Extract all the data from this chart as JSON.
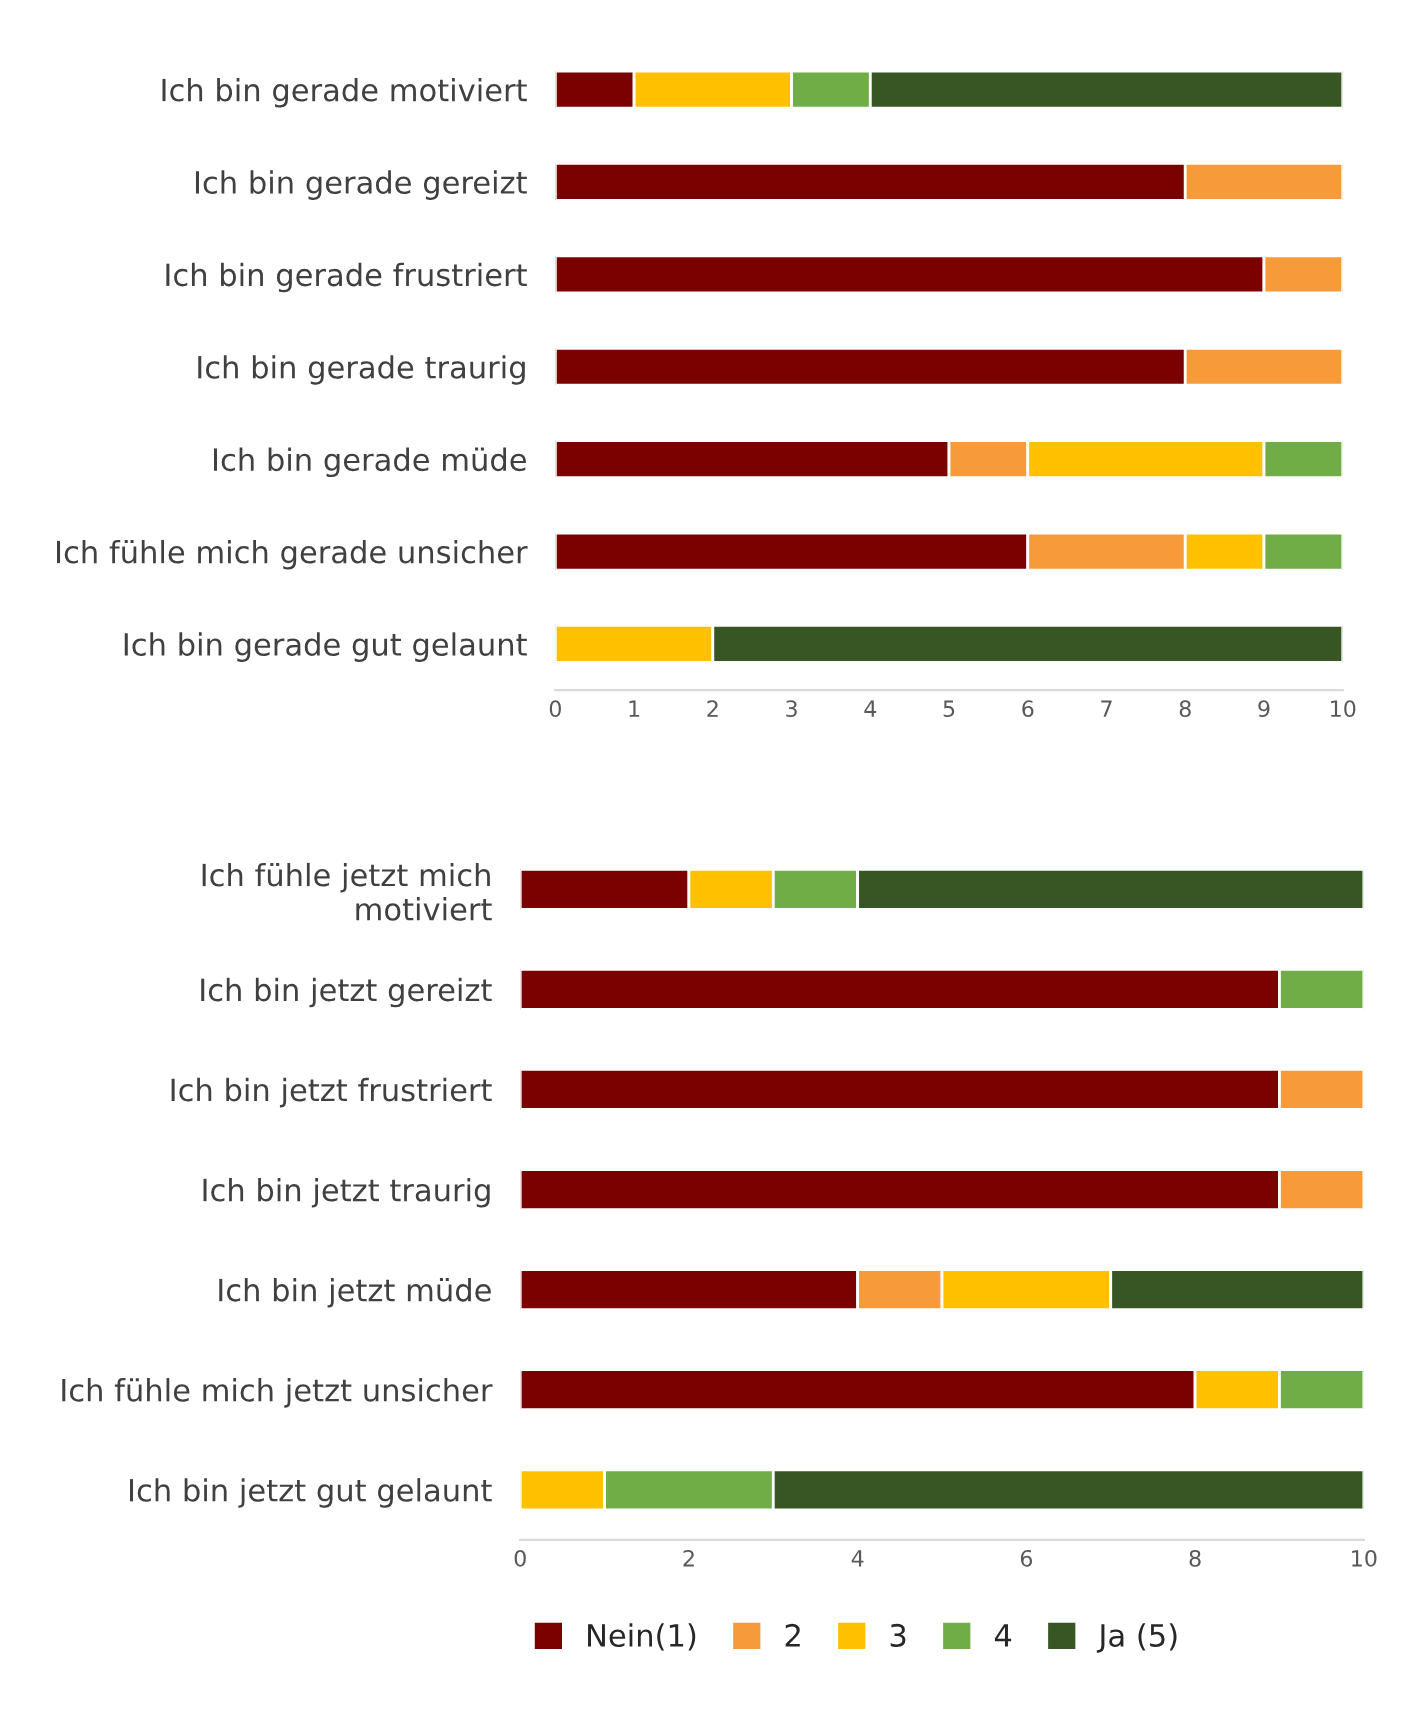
{
  "chart_data": [
    {
      "type": "bar",
      "orientation": "horizontal",
      "stacked": true,
      "categories": [
        "Ich bin gerade motiviert",
        "Ich bin gerade gereizt",
        "Ich bin gerade frustriert",
        "Ich bin gerade traurig",
        "Ich bin gerade müde",
        "Ich fühle mich gerade unsicher",
        "Ich bin gerade gut gelaunt"
      ],
      "series": [
        {
          "color": "#7b0000",
          "values": [
            1,
            8,
            9,
            8,
            5,
            6,
            null
          ]
        },
        {
          "color": "#f79a3a",
          "values": [
            null,
            2,
            1,
            2,
            1,
            2,
            null
          ]
        },
        {
          "color": "#ffc000",
          "values": [
            2,
            null,
            null,
            null,
            3,
            1,
            2
          ]
        },
        {
          "color": "#70ad47",
          "values": [
            1,
            null,
            null,
            null,
            1,
            1,
            null
          ]
        },
        {
          "color": "#375623",
          "values": [
            6,
            null,
            null,
            null,
            null,
            null,
            8
          ]
        }
      ],
      "xlim": [
        0,
        10
      ],
      "xticks": [
        0,
        1,
        2,
        3,
        4,
        5,
        6,
        7,
        8,
        9,
        10
      ],
      "grid": false
    },
    {
      "type": "bar",
      "orientation": "horizontal",
      "stacked": true,
      "categories": [
        "Ich fühle jetzt mich\nmotiviert",
        "Ich bin jetzt gereizt",
        "Ich bin jetzt frustriert",
        "Ich bin jetzt traurig",
        "Ich bin jetzt müde",
        "Ich fühle mich jetzt unsicher",
        "Ich bin jetzt gut gelaunt"
      ],
      "series": [
        {
          "name": "Nein(1)",
          "color": "#7b0000",
          "values": [
            2,
            9,
            9,
            9,
            4,
            8,
            null
          ]
        },
        {
          "name": "2",
          "color": "#f79a3a",
          "values": [
            null,
            null,
            1,
            1,
            1,
            null,
            null
          ]
        },
        {
          "name": "3",
          "color": "#ffc000",
          "values": [
            1,
            null,
            null,
            null,
            2,
            1,
            1
          ]
        },
        {
          "name": "4",
          "color": "#70ad47",
          "values": [
            1,
            1,
            null,
            null,
            null,
            1,
            2
          ]
        },
        {
          "name": "Ja (5)",
          "color": "#375623",
          "values": [
            6,
            null,
            null,
            null,
            3,
            null,
            7
          ]
        }
      ],
      "xlim": [
        0,
        10
      ],
      "xticks": [
        0,
        2,
        4,
        6,
        8,
        10
      ],
      "grid": false,
      "legend": "bottom"
    }
  ]
}
